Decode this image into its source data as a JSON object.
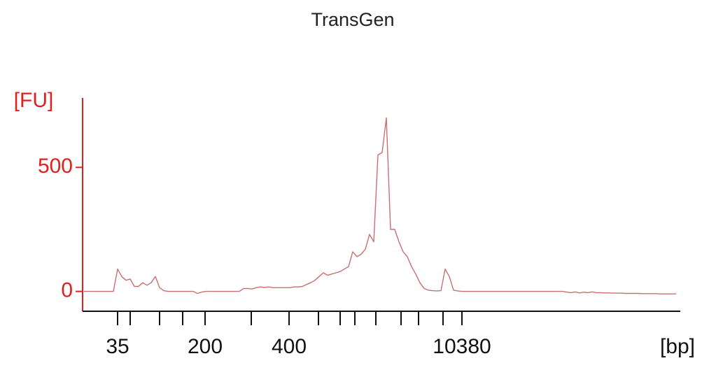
{
  "chart_data": {
    "type": "line",
    "title": "TransGen",
    "y_label": "[FU]",
    "x_label": "[bp]",
    "ylim": [
      -80,
      780
    ],
    "yticks": [
      0,
      500
    ],
    "xtick_labels": [
      "35",
      null,
      null,
      null,
      "200",
      null,
      "400",
      null,
      null,
      null,
      null,
      null,
      null,
      null,
      "10380"
    ],
    "color": "#c87070",
    "axis_color": "#e02020",
    "values": [
      0,
      0,
      0,
      0,
      0,
      0,
      0,
      0,
      90,
      60,
      45,
      50,
      20,
      20,
      35,
      25,
      35,
      60,
      15,
      3,
      0,
      0,
      0,
      0,
      0,
      0,
      0,
      -8,
      -3,
      0,
      0,
      0,
      0,
      0,
      0,
      0,
      0,
      0,
      12,
      12,
      10,
      15,
      18,
      16,
      18,
      15,
      15,
      15,
      15,
      15,
      18,
      18,
      20,
      28,
      35,
      45,
      60,
      75,
      65,
      70,
      75,
      80,
      90,
      100,
      160,
      140,
      150,
      170,
      230,
      200,
      550,
      560,
      700,
      250,
      250,
      200,
      160,
      140,
      100,
      70,
      35,
      12,
      5,
      3,
      2,
      3,
      90,
      60,
      5,
      2,
      0,
      0,
      0,
      0,
      0,
      0,
      0,
      0,
      0,
      0,
      0,
      0,
      0,
      0,
      0,
      0,
      0,
      0,
      0,
      0,
      0,
      0,
      0,
      0,
      0,
      -3,
      -5,
      -2,
      -6,
      -3,
      -5,
      -2,
      -5,
      -5,
      -6,
      -6,
      -7,
      -7,
      -7,
      -8,
      -8,
      -8,
      -8,
      -9,
      -9,
      -9,
      -9,
      -10,
      -10,
      -10,
      -10,
      -10
    ]
  }
}
